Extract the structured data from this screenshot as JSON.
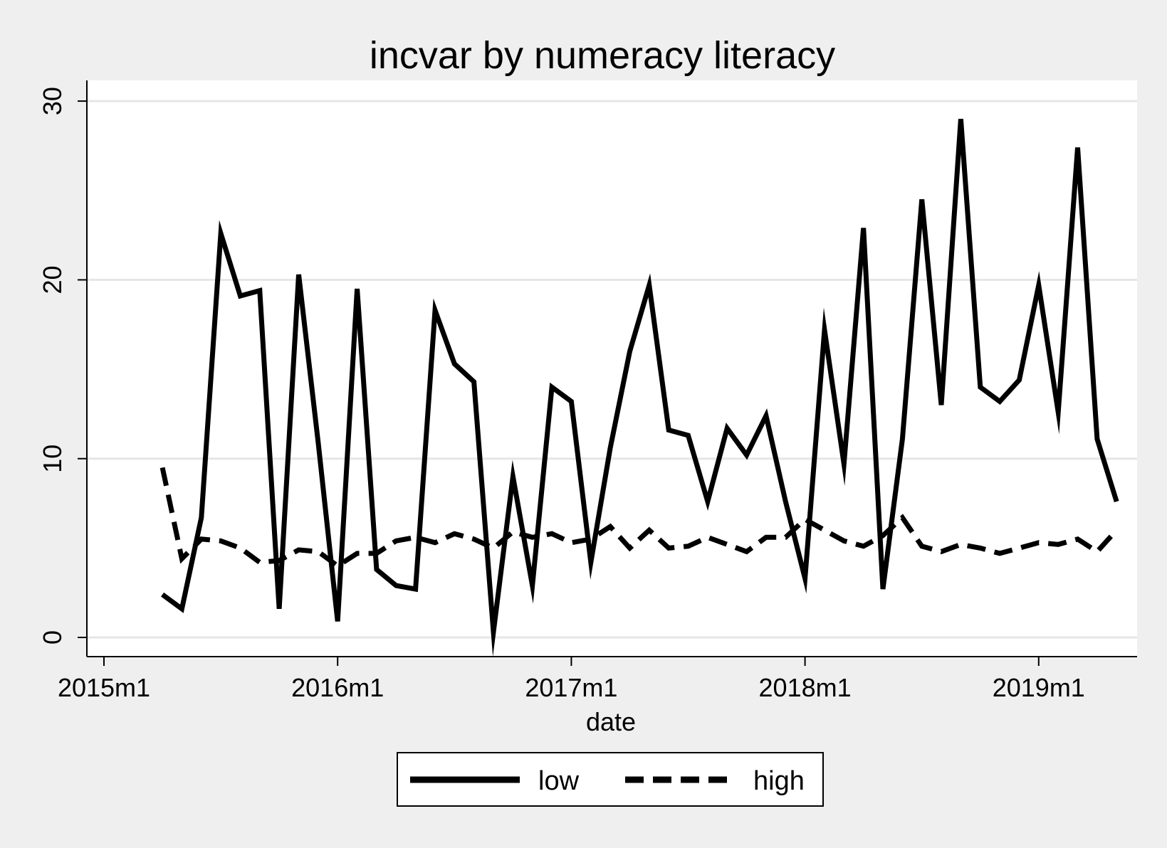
{
  "chart_data": {
    "type": "line",
    "title": "incvar by numeracy literacy",
    "xlabel": "date",
    "ylabel": "",
    "xlim": [
      0,
      53
    ],
    "ylim": [
      -1,
      31
    ],
    "x_ticks": [
      {
        "value": 0,
        "label": "2015m1"
      },
      {
        "value": 12,
        "label": "2016m1"
      },
      {
        "value": 24,
        "label": "2017m1"
      },
      {
        "value": 36,
        "label": "2018m1"
      },
      {
        "value": 48,
        "label": "2019m1"
      }
    ],
    "y_ticks": [
      {
        "value": 0,
        "label": "0"
      },
      {
        "value": 10,
        "label": "10"
      },
      {
        "value": 20,
        "label": "20"
      },
      {
        "value": 30,
        "label": "30"
      }
    ],
    "grid": true,
    "legend": {
      "position": "bottom",
      "entries": [
        "low",
        "high"
      ]
    },
    "x": [
      3,
      4,
      5,
      6,
      7,
      8,
      9,
      10,
      11,
      12,
      13,
      14,
      15,
      16,
      17,
      18,
      19,
      20,
      21,
      22,
      23,
      24,
      25,
      26,
      27,
      28,
      29,
      30,
      31,
      32,
      33,
      34,
      35,
      36,
      37,
      38,
      39,
      40,
      41,
      42,
      43,
      44,
      45,
      46,
      47,
      48,
      49,
      50,
      51,
      52
    ],
    "series": [
      {
        "name": "low",
        "style": "solid",
        "values": [
          2.4,
          1.6,
          6.7,
          22.6,
          19.1,
          19.4,
          1.6,
          20.3,
          10.9,
          0.9,
          19.5,
          3.8,
          2.9,
          2.7,
          18.3,
          15.3,
          14.3,
          0.3,
          9.0,
          2.9,
          14.0,
          13.2,
          4.2,
          10.6,
          16.0,
          19.7,
          11.6,
          11.3,
          7.6,
          11.7,
          10.2,
          12.4,
          7.6,
          3.3,
          17.2,
          9.7,
          22.9,
          2.7,
          11.1,
          24.5,
          13.0,
          29.0,
          14.0,
          13.2,
          14.4,
          19.7,
          12.6,
          27.4,
          11.1,
          7.6
        ]
      },
      {
        "name": "high",
        "style": "dashed",
        "values": [
          9.5,
          4.4,
          5.5,
          5.4,
          5.0,
          4.2,
          4.3,
          4.9,
          4.8,
          4.0,
          4.7,
          4.7,
          5.4,
          5.6,
          5.3,
          5.8,
          5.5,
          5.0,
          5.9,
          5.6,
          5.8,
          5.3,
          5.5,
          6.2,
          5.0,
          6.0,
          5.0,
          5.1,
          5.6,
          5.2,
          4.8,
          5.6,
          5.6,
          6.6,
          6.0,
          5.4,
          5.1,
          5.7,
          6.7,
          5.1,
          4.8,
          5.2,
          5.0,
          4.7,
          5.0,
          5.3,
          5.2,
          5.5,
          4.8,
          6.0
        ]
      }
    ]
  }
}
